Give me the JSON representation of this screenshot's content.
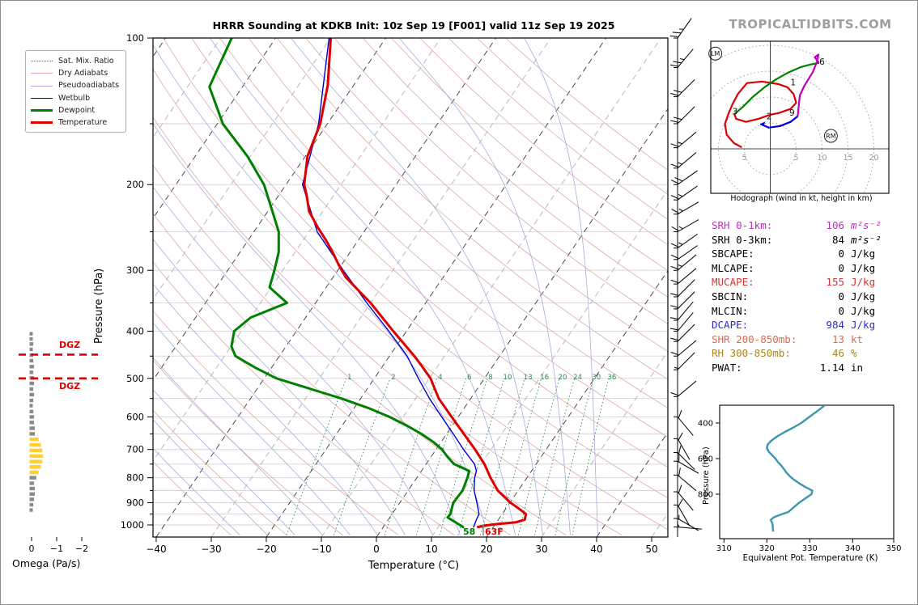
{
  "title": "HRRR Sounding at KDKB Init: 10z Sep 19 [F001] valid 11z Sep 19 2025",
  "watermark": "TROPICALTIDBITS.COM",
  "skewt": {
    "xlabel": "Temperature (°C)",
    "ylabel": "Pressure (hPa)",
    "x_ticks": [
      -40,
      -30,
      -20,
      -10,
      0,
      10,
      20,
      30,
      40,
      50
    ],
    "p_ticks": [
      100,
      200,
      300,
      400,
      500,
      600,
      700,
      800,
      900,
      1000
    ],
    "mix_ratio_values": [
      1,
      2,
      4,
      6,
      8,
      10,
      13,
      16,
      20,
      24,
      30,
      36
    ],
    "dgz_label": "DGZ",
    "dgz_pressures": [
      447,
      500
    ],
    "surface": {
      "dewpoint_f": "58",
      "temp_f": "63F"
    },
    "legend": [
      {
        "label": "Sat. Mix. Ratio",
        "style": "dotted",
        "color": "#2e8b57"
      },
      {
        "label": "Dry Adiabats",
        "style": "thin",
        "color": "#dfa8a8"
      },
      {
        "label": "Pseudoadiabats",
        "style": "thin",
        "color": "#a8ace0"
      },
      {
        "label": "Wetbulb",
        "style": "medium",
        "color": "#0000cc"
      },
      {
        "label": "Dewpoint",
        "style": "thick",
        "color": "#008000"
      },
      {
        "label": "Temperature",
        "style": "thick",
        "color": "#dd0000"
      }
    ]
  },
  "omega": {
    "label": "Omega (Pa/s)",
    "ticks": [
      0,
      -1,
      -2
    ]
  },
  "hodograph": {
    "caption": "Hodograph (wind in kt, height in km)",
    "rings_kt": [
      5,
      10,
      15,
      20
    ],
    "ring_tick_labels": [
      {
        "text": "5",
        "u": -5
      },
      {
        "text": "5",
        "u": 5
      },
      {
        "text": "10",
        "u": 10
      },
      {
        "text": "15",
        "u": 15
      },
      {
        "text": "20",
        "u": 20
      }
    ],
    "storm_markers": [
      {
        "label": "LM",
        "u": -10.6,
        "v": 18.4
      },
      {
        "label": "RM",
        "u": 11.7,
        "v": 2.5
      }
    ],
    "height_labels": [
      {
        "km": "1",
        "u": 4.4,
        "v": 12.7
      },
      {
        "km": "2",
        "u": -0.2,
        "v": 6.2
      },
      {
        "km": "3",
        "u": -6.8,
        "v": 7.1
      },
      {
        "km": "6",
        "u": 10.0,
        "v": 16.7
      },
      {
        "km": "9",
        "u": 4.2,
        "v": 6.9
      }
    ]
  },
  "stats": [
    {
      "label": "SRH 0-1km:",
      "value": "106",
      "unit": "m²s⁻²",
      "color": "#b535b5",
      "italic_unit": true
    },
    {
      "label": "SRH 0-3km:",
      "value": "84",
      "unit": "m²s⁻²",
      "color": "#000000",
      "italic_unit": true
    },
    {
      "label": "SBCAPE:",
      "value": "0",
      "unit": "J/kg",
      "color": "#000000",
      "italic_unit": false
    },
    {
      "label": "MLCAPE:",
      "value": "0",
      "unit": "J/kg",
      "color": "#000000",
      "italic_unit": false
    },
    {
      "label": "MUCAPE:",
      "value": "155",
      "unit": "J/kg",
      "color": "#d43535",
      "italic_unit": false
    },
    {
      "label": "SBCIN:",
      "value": "0",
      "unit": "J/kg",
      "color": "#000000",
      "italic_unit": false
    },
    {
      "label": "MLCIN:",
      "value": "0",
      "unit": "J/kg",
      "color": "#000000",
      "italic_unit": false
    },
    {
      "label": "DCAPE:",
      "value": "984",
      "unit": "J/kg",
      "color": "#2c2ccc",
      "italic_unit": false
    },
    {
      "label": "SHR 200-850mb:",
      "value": "13",
      "unit": "kt",
      "color": "#e06a4a",
      "italic_unit": false
    },
    {
      "label": "RH 300-850mb:",
      "value": "46",
      "unit": "%",
      "color": "#a8861f",
      "italic_unit": false
    },
    {
      "label": "PWAT:",
      "value": "1.14",
      "unit": "in",
      "color": "#000000",
      "italic_unit": false
    }
  ],
  "thetae_panel": {
    "xlabel": "Equivalent Pot. Temperature (K)",
    "ylabel": "Pressure (hPa)",
    "x_ticks": [
      310,
      320,
      330,
      340,
      350
    ],
    "p_ticks": [
      400,
      600,
      800
    ],
    "color": "#3c96ae"
  },
  "chart_data": [
    {
      "type": "line",
      "name": "skewt-profiles",
      "ylabel": "Pressure (hPa)",
      "xlabel": "Temperature (°C)",
      "xlim": [
        -40,
        50
      ],
      "plim": [
        100,
        1050
      ],
      "series": [
        {
          "name": "Temperature",
          "color": "#dd0000",
          "width": 3,
          "pressure_hpa": [
            100,
            125,
            150,
            175,
            200,
            210,
            227,
            245,
            261,
            277,
            293,
            310,
            350,
            400,
            450,
            470,
            500,
            550,
            600,
            650,
            700,
            750,
            800,
            850,
            900,
            925,
            950,
            975,
            988,
            995,
            1002,
            1010
          ],
          "temp_c": [
            -70,
            -64.7,
            -61.3,
            -59.6,
            -56.7,
            -55,
            -52.5,
            -48.9,
            -45.7,
            -42.9,
            -40.4,
            -37.7,
            -30,
            -22.4,
            -15.5,
            -13.1,
            -9.8,
            -5.8,
            -1.2,
            3.1,
            7.1,
            10.6,
            13.4,
            16.3,
            20.1,
            22.3,
            24.3,
            24.8,
            23.5,
            20.5,
            18.5,
            17.2
          ]
        },
        {
          "name": "Dewpoint",
          "color": "#008000",
          "width": 3,
          "pressure_hpa": [
            100,
            126,
            150,
            175,
            200,
            225,
            250,
            275,
            300,
            325,
            350,
            375,
            400,
            430,
            450,
            475,
            500,
            525,
            550,
            575,
            600,
            625,
            650,
            675,
            700,
            725,
            750,
            775,
            800,
            850,
            900,
            950,
            965,
            985,
            1010
          ],
          "temp_c": [
            -88,
            -86,
            -79,
            -70.5,
            -64,
            -59.5,
            -55.5,
            -53,
            -51.5,
            -50.3,
            -45.2,
            -50,
            -51.3,
            -49.9,
            -48,
            -43,
            -37.8,
            -30.5,
            -23.5,
            -17.5,
            -12.5,
            -8.3,
            -4.6,
            -1.5,
            1.1,
            3,
            5.1,
            8.7,
            9.2,
            9.9,
            9.7,
            10.6,
            10.5,
            12.3,
            14.5
          ]
        },
        {
          "name": "Wetbulb",
          "color": "#0000cc",
          "width": 1.4,
          "pressure_hpa": [
            100,
            150,
            200,
            250,
            300,
            350,
            400,
            450,
            500,
            550,
            600,
            650,
            700,
            750,
            775,
            800,
            850,
            900,
            950,
            975,
            1000,
            1010
          ],
          "temp_c": [
            -70.3,
            -61.6,
            -57,
            -48.5,
            -39,
            -30.7,
            -23.2,
            -16.8,
            -12,
            -7.5,
            -3,
            1.2,
            5,
            8.8,
            10,
            10.5,
            12,
            14,
            15.8,
            16,
            16.3,
            16.4
          ]
        }
      ],
      "wind_barbs_p_dir_kt": [
        [
          100,
          35,
          25
        ],
        [
          115,
          40,
          25
        ],
        [
          132,
          45,
          20
        ],
        [
          150,
          45,
          20
        ],
        [
          168,
          50,
          15
        ],
        [
          185,
          50,
          15
        ],
        [
          200,
          55,
          20
        ],
        [
          215,
          55,
          15
        ],
        [
          230,
          60,
          15
        ],
        [
          250,
          60,
          15
        ],
        [
          270,
          55,
          15
        ],
        [
          285,
          55,
          10
        ],
        [
          300,
          50,
          15
        ],
        [
          320,
          50,
          10
        ],
        [
          340,
          45,
          10
        ],
        [
          360,
          45,
          10
        ],
        [
          380,
          40,
          10
        ],
        [
          400,
          40,
          10
        ],
        [
          420,
          45,
          10
        ],
        [
          450,
          50,
          10
        ],
        [
          480,
          45,
          5
        ],
        [
          545,
          50,
          10
        ],
        [
          600,
          140,
          10
        ],
        [
          665,
          150,
          10
        ],
        [
          710,
          135,
          10
        ],
        [
          740,
          120,
          10
        ],
        [
          790,
          130,
          10
        ],
        [
          855,
          140,
          10
        ],
        [
          910,
          150,
          10
        ],
        [
          970,
          120,
          5
        ],
        [
          1010,
          95,
          5
        ]
      ]
    },
    {
      "type": "line",
      "name": "hodograph",
      "units": "kt",
      "rings": [
        5,
        10,
        15,
        20
      ],
      "segments": [
        {
          "name": "0-3km",
          "color": "#dd0000",
          "uv": [
            [
              -5.5,
              0.3
            ],
            [
              -7,
              1.1
            ],
            [
              -8.4,
              2.7
            ],
            [
              -8.75,
              4.8
            ],
            [
              -8.1,
              6.7
            ],
            [
              -7.3,
              8.6
            ],
            [
              -6.25,
              10.6
            ],
            [
              -4.5,
              12.7
            ],
            [
              -1.6,
              13
            ],
            [
              1.6,
              12.5
            ],
            [
              3.3,
              11.9
            ],
            [
              4.5,
              10.6
            ],
            [
              5,
              8.9
            ],
            [
              3.9,
              7.7
            ],
            [
              1.6,
              6.9
            ],
            [
              0,
              6.6
            ],
            [
              -2.3,
              5.8
            ],
            [
              -4.7,
              5.2
            ],
            [
              -6.6,
              5.8
            ],
            [
              -6.9,
              6.7
            ]
          ]
        },
        {
          "name": "3-6km",
          "color": "#008000",
          "uv": [
            [
              -6.9,
              6.7
            ],
            [
              -5.3,
              8.1
            ],
            [
              -3.4,
              10
            ],
            [
              -1.1,
              11.9
            ],
            [
              1.1,
              13.4
            ],
            [
              3.4,
              14.7
            ],
            [
              5.9,
              15.8
            ],
            [
              7.8,
              16.3
            ],
            [
              9.4,
              16.6
            ]
          ]
        },
        {
          "name": "6-9km",
          "color": "#bb00bb",
          "uv": [
            [
              9.4,
              16.6
            ],
            [
              8.6,
              17.7
            ],
            [
              9.3,
              18.2
            ],
            [
              9,
              16.8
            ],
            [
              8.2,
              14.8
            ],
            [
              6.6,
              12.2
            ],
            [
              5.7,
              10.3
            ],
            [
              5.5,
              8.3
            ],
            [
              5.3,
              6.3
            ]
          ]
        },
        {
          "name": "9km+",
          "color": "#0000dd",
          "uv": [
            [
              5.3,
              6.3
            ],
            [
              3.9,
              5.2
            ],
            [
              1.9,
              4.4
            ],
            [
              -0.3,
              4.1
            ],
            [
              -1.9,
              4.8
            ]
          ]
        }
      ]
    },
    {
      "type": "line",
      "name": "equivalent-potential-temperature",
      "color": "#3c96ae",
      "xlabel": "Equivalent Pot. Temperature (K)",
      "ylabel": "Pressure (hPa)",
      "xlim": [
        309,
        349.5
      ],
      "plim": [
        300,
        1050
      ],
      "pressure_hpa": [
        300,
        325,
        350,
        375,
        400,
        425,
        450,
        475,
        500,
        520,
        540,
        560,
        580,
        600,
        620,
        640,
        660,
        680,
        700,
        720,
        740,
        760,
        780,
        800,
        820,
        850,
        875,
        900,
        915,
        930,
        945,
        960,
        980,
        1000,
        1010
      ],
      "theta_e_k": [
        333.5,
        332.2,
        330.8,
        329.4,
        328,
        326.2,
        324.2,
        322.4,
        321,
        320.2,
        320,
        320.4,
        321.2,
        322,
        322.6,
        323.4,
        324,
        324.6,
        325.4,
        326.4,
        327.6,
        329,
        330.6,
        330.4,
        329.2,
        327.4,
        326.2,
        325,
        323.2,
        321.6,
        320.9,
        321.2,
        321.4,
        321.4,
        321.5
      ]
    },
    {
      "type": "bar",
      "name": "omega",
      "xlabel": "Omega (Pa/s)",
      "x_ticks": [
        0,
        -1,
        -2
      ],
      "yellow_threshold": -0.1,
      "pressure_hpa": [
        405,
        415,
        425,
        436,
        448,
        460,
        473,
        486,
        499,
        512,
        526,
        540,
        555,
        569,
        585,
        600,
        616,
        633,
        650,
        667,
        685,
        703,
        722,
        741,
        760,
        780,
        800,
        821,
        842,
        864,
        886,
        909,
        932
      ],
      "omega_pa_s": [
        -0.04,
        -0.04,
        -0.05,
        -0.04,
        -0.05,
        -0.05,
        -0.06,
        -0.05,
        -0.06,
        -0.06,
        -0.05,
        -0.06,
        -0.05,
        -0.04,
        -0.05,
        -0.06,
        -0.06,
        -0.07,
        -0.07,
        -0.12,
        -0.15,
        -0.17,
        -0.18,
        -0.17,
        -0.15,
        -0.12,
        -0.09,
        -0.06,
        -0.07,
        -0.07,
        -0.06,
        -0.05,
        -0.04
      ],
      "colors": {
        "neutral": "#8a8a8a",
        "rising": "#ffcf33"
      }
    }
  ]
}
